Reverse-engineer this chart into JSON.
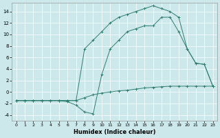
{
  "xlabel": "Humidex (Indice chaleur)",
  "xlim": [
    -0.5,
    23.5
  ],
  "ylim": [
    -5,
    15.5
  ],
  "yticks": [
    -4,
    -2,
    0,
    2,
    4,
    6,
    8,
    10,
    12,
    14
  ],
  "xticks": [
    0,
    1,
    2,
    3,
    4,
    5,
    6,
    7,
    8,
    9,
    10,
    11,
    12,
    13,
    14,
    15,
    16,
    17,
    18,
    19,
    20,
    21,
    22,
    23
  ],
  "bg_color": "#cce8ea",
  "line_color": "#2e7d6e",
  "line1_x": [
    0,
    1,
    2,
    3,
    4,
    5,
    6,
    7,
    8,
    9,
    10,
    11,
    12,
    13,
    14,
    15,
    16,
    17,
    18,
    19,
    20,
    21,
    22,
    23
  ],
  "line1_y": [
    -1.5,
    -1.5,
    -1.5,
    -1.5,
    -1.5,
    -1.5,
    -1.5,
    -1.5,
    -1.0,
    -0.5,
    -0.2,
    0.0,
    0.2,
    0.3,
    0.5,
    0.7,
    0.8,
    0.9,
    1.0,
    1.0,
    1.0,
    1.0,
    1.0,
    1.0
  ],
  "line2_x": [
    0,
    1,
    2,
    3,
    4,
    5,
    6,
    7,
    8,
    9,
    10,
    11,
    12,
    13,
    14,
    15,
    16,
    17,
    18,
    19,
    20,
    21,
    22,
    23
  ],
  "line2_y": [
    -1.5,
    -1.5,
    -1.5,
    -1.5,
    -1.5,
    -1.5,
    -1.7,
    -2.3,
    -3.5,
    -3.8,
    3.0,
    7.5,
    9.0,
    10.5,
    11.0,
    11.5,
    11.5,
    13.0,
    13.0,
    10.5,
    7.5,
    5.0,
    4.8,
    1.0
  ],
  "line3_x": [
    0,
    1,
    2,
    3,
    4,
    5,
    6,
    7,
    8,
    9,
    10,
    11,
    12,
    13,
    14,
    15,
    16,
    17,
    18,
    19,
    20,
    21,
    22,
    23
  ],
  "line3_y": [
    -1.5,
    -1.5,
    -1.5,
    -1.5,
    -1.5,
    -1.5,
    -1.5,
    -1.5,
    7.5,
    9.0,
    10.5,
    12.0,
    13.0,
    13.5,
    14.0,
    14.5,
    15.0,
    14.5,
    14.0,
    13.0,
    7.5,
    5.0,
    4.8,
    1.0
  ]
}
